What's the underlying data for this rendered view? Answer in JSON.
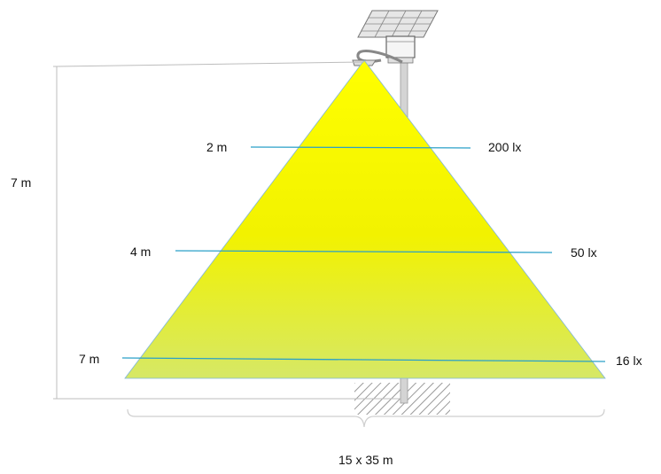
{
  "diagram": {
    "height_label": "7 m",
    "area_label": "15 x 35 m",
    "levels": [
      {
        "distance": "2 m",
        "illuminance": "200 lx"
      },
      {
        "distance": "4 m",
        "illuminance": "50 lx"
      },
      {
        "distance": "7 m",
        "illuminance": "16 lx"
      }
    ],
    "colors": {
      "beam_top": "#ffff00",
      "beam_bottom": "#d6e866",
      "level_line": "#2aa0c8",
      "dimension_line": "#bdbdbd",
      "pole": "#c8c8c8"
    }
  }
}
